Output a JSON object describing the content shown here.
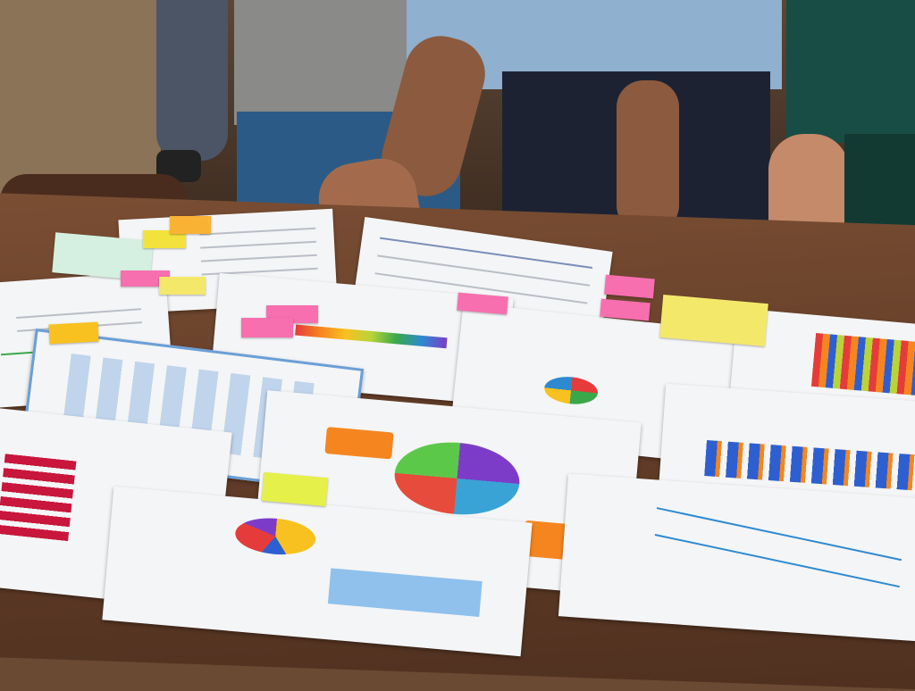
{
  "colors": {
    "table": "#6b4a33",
    "paper": "#f4f5f6",
    "sticky_pink": "#f76fae",
    "sticky_yellow": "#f4e86a",
    "sticky_orange": "#f9b234",
    "sticky_green": "#d5f0a8",
    "shirt_blue": "#8fb0cf",
    "pants_navy": "#1d2233",
    "jacket_teal": "#174d44",
    "sweater_grey": "#8a8a88",
    "pants_khaki": "#8a7356",
    "chart_blue": "#2d5fd1",
    "chart_orange": "#f5861f"
  }
}
